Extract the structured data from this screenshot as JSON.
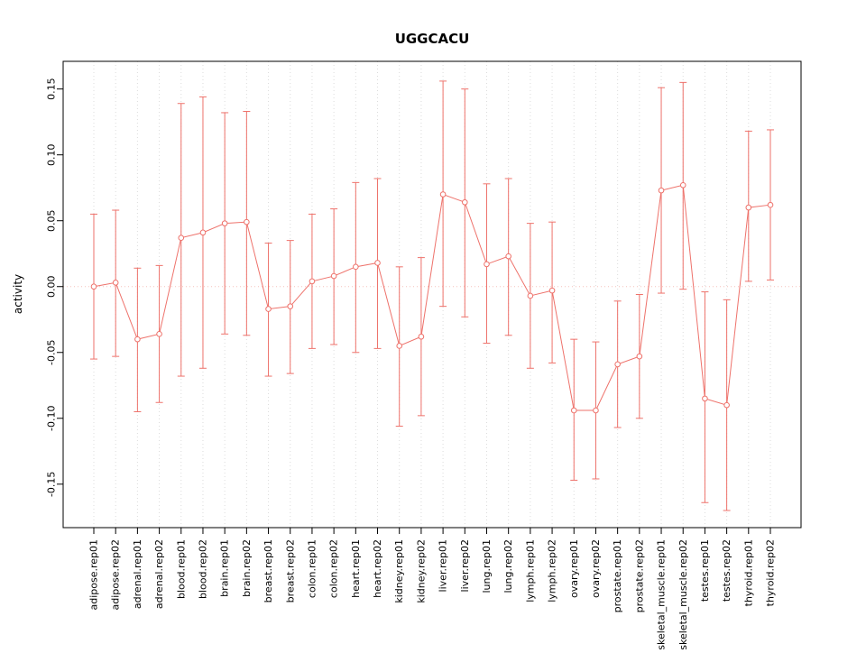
{
  "chart_data": {
    "type": "line",
    "title": "UGGCACU",
    "xlabel": "",
    "ylabel": "activity",
    "ylim": [
      -0.183,
      0.171
    ],
    "yticks": [
      -0.15,
      -0.1,
      -0.05,
      0.0,
      0.05,
      0.1,
      0.15
    ],
    "ytick_labels": [
      "-0.15",
      "-0.10",
      "-0.05",
      "0.00",
      "0.05",
      "0.10",
      "0.15"
    ],
    "grid": true,
    "zero_line": 0,
    "legend": "none",
    "marker": "open-circle",
    "categories": [
      "adipose.rep01",
      "adipose.rep02",
      "adrenal.rep01",
      "adrenal.rep02",
      "blood.rep01",
      "blood.rep02",
      "brain.rep01",
      "brain.rep02",
      "breast.rep01",
      "breast.rep02",
      "colon.rep01",
      "colon.rep02",
      "heart.rep01",
      "heart.rep02",
      "kidney.rep01",
      "kidney.rep02",
      "liver.rep01",
      "liver.rep02",
      "lung.rep01",
      "lung.rep02",
      "lymph.rep01",
      "lymph.rep02",
      "ovary.rep01",
      "ovary.rep02",
      "prostate.rep01",
      "prostate.rep02",
      "skeletal_muscle.rep01",
      "skeletal_muscle.rep02",
      "testes.rep01",
      "testes.rep02",
      "thyroid.rep01",
      "thyroid.rep02"
    ],
    "series": [
      {
        "name": "activity",
        "values": [
          0.0,
          0.003,
          -0.04,
          -0.036,
          0.037,
          0.041,
          0.048,
          0.049,
          -0.017,
          -0.015,
          0.004,
          0.008,
          0.015,
          0.018,
          -0.045,
          -0.038,
          0.07,
          0.064,
          0.017,
          0.023,
          -0.007,
          -0.003,
          -0.094,
          -0.094,
          -0.059,
          -0.053,
          0.073,
          0.077,
          -0.085,
          -0.09,
          0.06,
          0.062
        ],
        "lower": [
          -0.055,
          -0.053,
          -0.095,
          -0.088,
          -0.068,
          -0.062,
          -0.036,
          -0.037,
          -0.068,
          -0.066,
          -0.047,
          -0.044,
          -0.05,
          -0.047,
          -0.106,
          -0.098,
          -0.015,
          -0.023,
          -0.043,
          -0.037,
          -0.062,
          -0.058,
          -0.147,
          -0.146,
          -0.107,
          -0.1,
          -0.005,
          -0.002,
          -0.164,
          -0.17,
          0.004,
          0.005
        ],
        "upper": [
          0.055,
          0.058,
          0.014,
          0.016,
          0.139,
          0.144,
          0.132,
          0.133,
          0.033,
          0.035,
          0.055,
          0.059,
          0.079,
          0.082,
          0.015,
          0.022,
          0.156,
          0.15,
          0.078,
          0.082,
          0.048,
          0.049,
          -0.04,
          -0.042,
          -0.011,
          -0.006,
          0.151,
          0.155,
          -0.004,
          -0.01,
          0.118,
          0.119
        ]
      }
    ],
    "colors": {
      "series": "#ee726b",
      "grid": "#dcdcdc",
      "zero_line": "#f5c0bb",
      "axis": "#000000",
      "background": "#ffffff"
    }
  }
}
